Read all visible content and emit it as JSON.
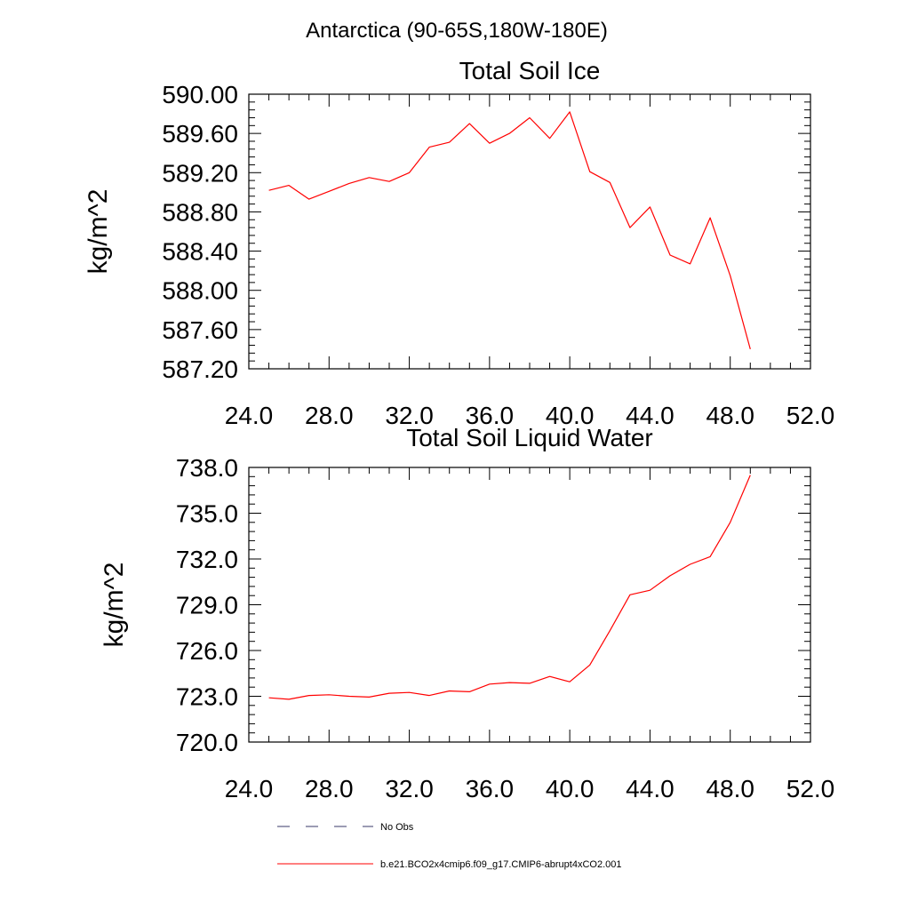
{
  "suptitle": "Antarctica (90-65S,180W-180E)",
  "chart_data": [
    {
      "type": "line",
      "title": "Total Soil Ice",
      "ylabel": "kg/m^2",
      "xlabel": "",
      "xlim": [
        24,
        52
      ],
      "ylim": [
        587.2,
        590.0
      ],
      "x_ticks": [
        24,
        28,
        32,
        36,
        40,
        44,
        48,
        52
      ],
      "x_tick_labels": [
        "24.0",
        "28.0",
        "32.0",
        "36.0",
        "40.0",
        "44.0",
        "48.0",
        "52.0"
      ],
      "y_ticks": [
        587.2,
        587.6,
        588.0,
        588.4,
        588.8,
        589.2,
        589.6,
        590.0
      ],
      "y_tick_labels": [
        "587.20",
        "587.60",
        "588.00",
        "588.40",
        "588.80",
        "589.20",
        "589.60",
        "590.00"
      ],
      "grid": false,
      "series": [
        {
          "name": "b.e21.BCO2x4cmip6.f09_g17.CMIP6-abrupt4xCO2.001",
          "color": "#ff0000",
          "x": [
            25,
            26,
            27,
            28,
            29,
            30,
            31,
            32,
            33,
            34,
            35,
            36,
            37,
            38,
            39,
            40,
            41,
            42,
            43,
            44,
            45,
            46,
            47,
            48,
            49
          ],
          "y": [
            589.02,
            589.07,
            588.93,
            589.01,
            589.09,
            589.15,
            589.11,
            589.2,
            589.46,
            589.51,
            589.7,
            589.5,
            589.6,
            589.76,
            589.55,
            589.82,
            589.21,
            589.1,
            588.64,
            588.85,
            588.36,
            588.27,
            588.74,
            588.15,
            587.4
          ]
        }
      ]
    },
    {
      "type": "line",
      "title": "Total Soil Liquid Water",
      "ylabel": "kg/m^2",
      "xlabel": "",
      "xlim": [
        24,
        52
      ],
      "ylim": [
        720.0,
        738.0
      ],
      "x_ticks": [
        24,
        28,
        32,
        36,
        40,
        44,
        48,
        52
      ],
      "x_tick_labels": [
        "24.0",
        "28.0",
        "32.0",
        "36.0",
        "40.0",
        "44.0",
        "48.0",
        "52.0"
      ],
      "y_ticks": [
        720,
        723,
        726,
        729,
        732,
        735,
        738
      ],
      "y_tick_labels": [
        "720.0",
        "723.0",
        "726.0",
        "729.0",
        "732.0",
        "735.0",
        "738.0"
      ],
      "grid": false,
      "series": [
        {
          "name": "b.e21.BCO2x4cmip6.f09_g17.CMIP6-abrupt4xCO2.001",
          "color": "#ff0000",
          "x": [
            25,
            26,
            27,
            28,
            29,
            30,
            31,
            32,
            33,
            34,
            35,
            36,
            37,
            38,
            39,
            40,
            41,
            42,
            43,
            44,
            45,
            46,
            47,
            48,
            49
          ],
          "y": [
            722.9,
            722.8,
            723.05,
            723.1,
            723.0,
            722.95,
            723.2,
            723.25,
            723.05,
            723.35,
            723.3,
            723.8,
            723.9,
            723.85,
            724.3,
            723.95,
            725.05,
            727.3,
            729.65,
            729.95,
            730.9,
            731.65,
            732.15,
            734.4,
            737.5
          ]
        }
      ]
    }
  ],
  "legend": {
    "placement": "bottom",
    "items": [
      {
        "label": "No Obs",
        "style": "dashed",
        "color": "#3a3a6a"
      },
      {
        "label": "b.e21.BCO2x4cmip6.f09_g17.CMIP6-abrupt4xCO2.001",
        "style": "solid",
        "color": "#ff0000"
      }
    ]
  }
}
